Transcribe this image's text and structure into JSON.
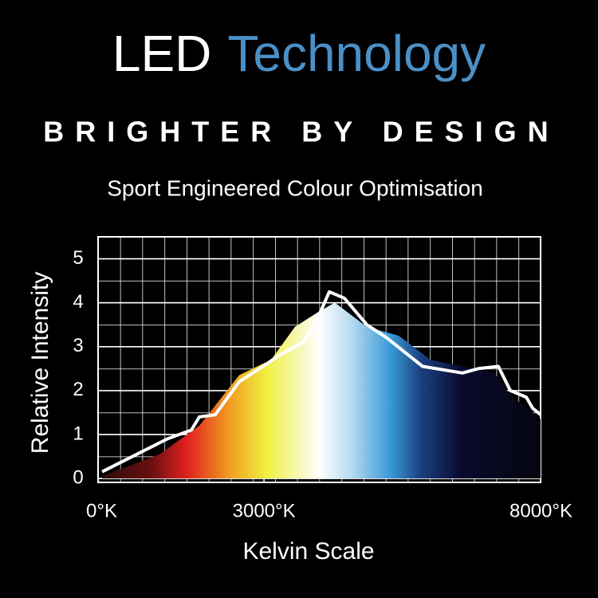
{
  "chart_data": {
    "type": "line",
    "title": "LED",
    "title_highlight": "Technology",
    "title_highlight_color": "#4a90c8",
    "subtitle": "BRIGHTER BY DESIGN",
    "subtitle2": "Sport Engineered Colour Optimisation",
    "y_label": "Relative Intensity",
    "x_label": "Kelvin Scale",
    "xlim": [
      0,
      8000
    ],
    "xticks": [
      {
        "value": 0,
        "label": "0°K"
      },
      {
        "value": 3000,
        "label": "3000°K"
      },
      {
        "value": 8000,
        "label": "8000°K"
      }
    ],
    "ylim": [
      0,
      5.5
    ],
    "yticks": [
      0,
      1,
      2,
      3,
      4,
      5
    ],
    "grid": true,
    "series": [
      {
        "fill": true,
        "x": [
          72,
          1110,
          1830,
          2551,
          3128,
          3560,
          3993,
          4281,
          4858,
          5434,
          6011,
          6588,
          7164,
          7452,
          8000
        ],
        "values": [
          0.05,
          0.55,
          1.2,
          2.35,
          2.7,
          3.45,
          3.8,
          4.0,
          3.45,
          3.25,
          2.7,
          2.55,
          2.4,
          1.9,
          1.35
        ]
      },
      {
        "fill": false,
        "color": "#ffffff",
        "x": [
          72,
          1254,
          1686,
          1830,
          2119,
          2551,
          2984,
          3272,
          3704,
          3920,
          4180,
          4454,
          4858,
          5218,
          5867,
          6588,
          6876,
          7236,
          7452,
          7741,
          7856,
          8000
        ],
        "values": [
          0.15,
          0.9,
          1.1,
          1.4,
          1.45,
          2.2,
          2.55,
          2.8,
          3.1,
          3.5,
          4.25,
          4.1,
          3.5,
          3.2,
          2.55,
          2.4,
          2.5,
          2.55,
          2.0,
          1.85,
          1.6,
          1.45
        ]
      }
    ]
  }
}
